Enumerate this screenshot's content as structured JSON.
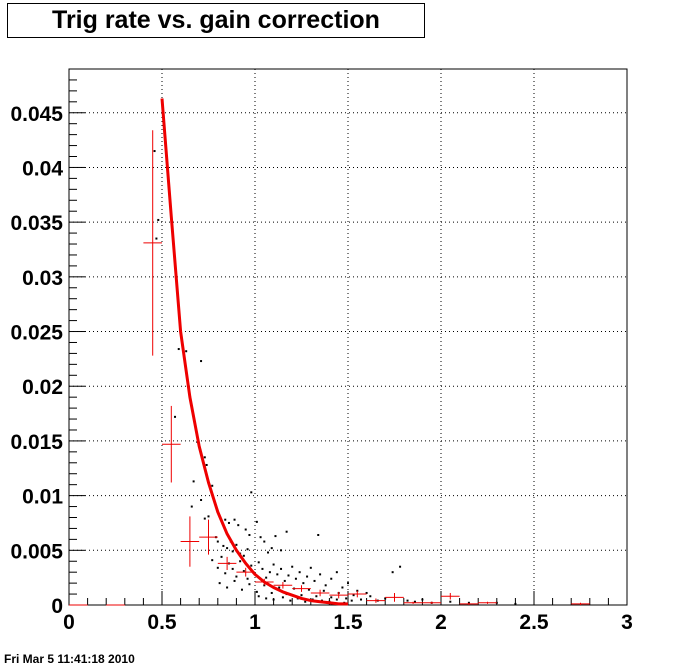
{
  "chart_data": {
    "type": "scatter",
    "title": "Trig rate vs. gain correction",
    "xlabel": "",
    "ylabel": "",
    "xlim": [
      0,
      3
    ],
    "ylim": [
      0,
      0.049
    ],
    "grid": true,
    "legend": "none",
    "x_ticks": [
      "0",
      "0.5",
      "1",
      "1.5",
      "2",
      "2.5",
      "3"
    ],
    "x_tick_values": [
      0,
      0.5,
      1,
      1.5,
      2,
      2.5,
      3
    ],
    "y_ticks": [
      "0",
      "0.005",
      "0.01",
      "0.015",
      "0.02",
      "0.025",
      "0.03",
      "0.035",
      "0.04",
      "0.045"
    ],
    "y_tick_values": [
      0,
      0.005,
      0.01,
      0.015,
      0.02,
      0.025,
      0.03,
      0.035,
      0.04,
      0.045
    ],
    "colors": {
      "profile": "#ee0000",
      "fit": "#ee0000",
      "points": "#000000"
    },
    "scatter_points": [
      [
        0.46,
        0.0415
      ],
      [
        0.48,
        0.0352
      ],
      [
        0.47,
        0.0335
      ],
      [
        0.59,
        0.0234
      ],
      [
        0.63,
        0.0232
      ],
      [
        0.71,
        0.0223
      ],
      [
        0.57,
        0.0172
      ],
      [
        0.69,
        0.0149
      ],
      [
        0.73,
        0.0135
      ],
      [
        0.74,
        0.0128
      ],
      [
        0.67,
        0.0113
      ],
      [
        0.77,
        0.0109
      ],
      [
        0.66,
        0.009
      ],
      [
        0.71,
        0.0096
      ],
      [
        0.73,
        0.0079
      ],
      [
        0.75,
        0.0081
      ],
      [
        0.8,
        0.0085
      ],
      [
        0.84,
        0.0078
      ],
      [
        0.86,
        0.0075
      ],
      [
        0.89,
        0.0078
      ],
      [
        0.91,
        0.0073
      ],
      [
        0.95,
        0.0069
      ],
      [
        0.98,
        0.0103
      ],
      [
        1.01,
        0.0076
      ],
      [
        0.97,
        0.0064
      ],
      [
        0.79,
        0.0062
      ],
      [
        0.8,
        0.0058
      ],
      [
        0.83,
        0.0054
      ],
      [
        0.85,
        0.0052
      ],
      [
        0.87,
        0.0058
      ],
      [
        0.88,
        0.0049
      ],
      [
        0.9,
        0.0055
      ],
      [
        0.92,
        0.0047
      ],
      [
        0.94,
        0.0045
      ],
      [
        0.96,
        0.0051
      ],
      [
        1.03,
        0.0062
      ],
      [
        1.05,
        0.0058
      ],
      [
        1.07,
        0.0048
      ],
      [
        1.09,
        0.0052
      ],
      [
        1.11,
        0.0063
      ],
      [
        1.14,
        0.005
      ],
      [
        1.17,
        0.0067
      ],
      [
        1.34,
        0.0064
      ],
      [
        0.77,
        0.0041
      ],
      [
        0.8,
        0.0034
      ],
      [
        0.82,
        0.0044
      ],
      [
        0.84,
        0.0029
      ],
      [
        0.86,
        0.0038
      ],
      [
        0.88,
        0.0033
      ],
      [
        0.9,
        0.0026
      ],
      [
        0.92,
        0.004
      ],
      [
        0.94,
        0.0031
      ],
      [
        0.96,
        0.0024
      ],
      [
        0.98,
        0.0036
      ],
      [
        1.0,
        0.0029
      ],
      [
        1.02,
        0.0039
      ],
      [
        1.04,
        0.0033
      ],
      [
        1.06,
        0.0025
      ],
      [
        1.08,
        0.003
      ],
      [
        1.1,
        0.0037
      ],
      [
        1.12,
        0.0028
      ],
      [
        1.14,
        0.0033
      ],
      [
        1.16,
        0.0022
      ],
      [
        1.18,
        0.0027
      ],
      [
        1.2,
        0.0035
      ],
      [
        1.22,
        0.0024
      ],
      [
        1.24,
        0.003
      ],
      [
        1.26,
        0.002
      ],
      [
        1.28,
        0.0026
      ],
      [
        1.3,
        0.0034
      ],
      [
        1.32,
        0.0022
      ],
      [
        1.35,
        0.0028
      ],
      [
        1.38,
        0.0018
      ],
      [
        1.41,
        0.0024
      ],
      [
        1.44,
        0.003
      ],
      [
        1.47,
        0.0016
      ],
      [
        1.5,
        0.002
      ],
      [
        1.55,
        0.0013
      ],
      [
        1.6,
        0.0011
      ],
      [
        0.81,
        0.002
      ],
      [
        0.85,
        0.0016
      ],
      [
        0.89,
        0.0022
      ],
      [
        0.93,
        0.0014
      ],
      [
        0.97,
        0.0019
      ],
      [
        1.01,
        0.0012
      ],
      [
        1.05,
        0.0018
      ],
      [
        1.09,
        0.0011
      ],
      [
        1.13,
        0.0016
      ],
      [
        1.17,
        0.001
      ],
      [
        1.21,
        0.0015
      ],
      [
        1.25,
        0.0009
      ],
      [
        1.29,
        0.0014
      ],
      [
        1.33,
        0.0008
      ],
      [
        1.37,
        0.0013
      ],
      [
        1.41,
        0.0007
      ],
      [
        1.45,
        0.0011
      ],
      [
        1.49,
        0.0006
      ],
      [
        1.53,
        0.0009
      ],
      [
        1.57,
        0.0005
      ],
      [
        1.62,
        0.0008
      ],
      [
        1.66,
        0.0004
      ],
      [
        1.7,
        0.0006
      ],
      [
        1.74,
        0.003
      ],
      [
        1.78,
        0.0035
      ],
      [
        1.82,
        0.0004
      ],
      [
        1.86,
        0.0003
      ],
      [
        1.9,
        0.0005
      ],
      [
        1.95,
        0.0002
      ],
      [
        2.05,
        0.0003
      ],
      [
        2.15,
        0.0002
      ],
      [
        2.3,
        0.0002
      ],
      [
        2.4,
        0.0001
      ],
      [
        1.02,
        0.0008
      ],
      [
        1.06,
        0.0006
      ],
      [
        1.1,
        0.0005
      ],
      [
        1.15,
        0.0007
      ],
      [
        1.19,
        0.0004
      ],
      [
        1.23,
        0.0006
      ],
      [
        1.27,
        0.0003
      ],
      [
        1.31,
        0.0005
      ],
      [
        1.36,
        0.0004
      ],
      [
        1.4,
        0.0003
      ],
      [
        1.44,
        0.0005
      ],
      [
        1.48,
        0.0002
      ],
      [
        1.52,
        0.0004
      ]
    ],
    "profile_points": [
      {
        "x": 0.45,
        "y": 0.0331,
        "xerr": 0.05,
        "yerr": 0.0103
      },
      {
        "x": 0.55,
        "y": 0.0147,
        "xerr": 0.05,
        "yerr": 0.0035
      },
      {
        "x": 0.65,
        "y": 0.0058,
        "xerr": 0.05,
        "yerr": 0.0023
      },
      {
        "x": 0.75,
        "y": 0.0062,
        "xerr": 0.05,
        "yerr": 0.0016
      },
      {
        "x": 0.85,
        "y": 0.0038,
        "xerr": 0.05,
        "yerr": 0.0006
      },
      {
        "x": 0.95,
        "y": 0.003,
        "xerr": 0.05,
        "yerr": 0.0004
      },
      {
        "x": 1.05,
        "y": 0.0021,
        "xerr": 0.05,
        "yerr": 0.0003
      },
      {
        "x": 1.15,
        "y": 0.0018,
        "xerr": 0.05,
        "yerr": 0.0003
      },
      {
        "x": 1.25,
        "y": 0.0015,
        "xerr": 0.05,
        "yerr": 0.0003
      },
      {
        "x": 1.35,
        "y": 0.0011,
        "xerr": 0.05,
        "yerr": 0.0003
      },
      {
        "x": 1.45,
        "y": 0.0009,
        "xerr": 0.05,
        "yerr": 0.0003
      },
      {
        "x": 1.55,
        "y": 0.001,
        "xerr": 0.05,
        "yerr": 0.0003
      },
      {
        "x": 1.65,
        "y": 0.0004,
        "xerr": 0.05,
        "yerr": 0.0002
      },
      {
        "x": 1.75,
        "y": 0.0007,
        "xerr": 0.05,
        "yerr": 0.0004
      },
      {
        "x": 1.85,
        "y": 0.0002,
        "xerr": 0.05,
        "yerr": 0.0001
      },
      {
        "x": 1.95,
        "y": 0.0002,
        "xerr": 0.05,
        "yerr": 0.0001
      },
      {
        "x": 2.05,
        "y": 0.0008,
        "xerr": 0.05,
        "yerr": 0.0003
      },
      {
        "x": 2.15,
        "y": 0.0001,
        "xerr": 0.05,
        "yerr": 0.0001
      },
      {
        "x": 2.25,
        "y": 0.0002,
        "xerr": 0.05,
        "yerr": 0.0001
      },
      {
        "x": 2.75,
        "y": 0.0001,
        "xerr": 0.05,
        "yerr": 0.0001
      },
      {
        "x": 0.05,
        "y": 0.0,
        "xerr": 0.05,
        "yerr": 0.0
      },
      {
        "x": 0.25,
        "y": 0.0,
        "xerr": 0.05,
        "yerr": 0.0
      }
    ],
    "fit_curve": [
      [
        0.5,
        0.0463
      ],
      [
        0.55,
        0.0355
      ],
      [
        0.6,
        0.025
      ],
      [
        0.65,
        0.019
      ],
      [
        0.7,
        0.0145
      ],
      [
        0.75,
        0.0112
      ],
      [
        0.8,
        0.0085
      ],
      [
        0.85,
        0.0065
      ],
      [
        0.9,
        0.005
      ],
      [
        0.95,
        0.0038
      ],
      [
        1.0,
        0.0028
      ],
      [
        1.05,
        0.0021
      ],
      [
        1.1,
        0.0016
      ],
      [
        1.15,
        0.0012
      ],
      [
        1.2,
        0.0009
      ],
      [
        1.25,
        0.0006
      ],
      [
        1.3,
        0.0004
      ],
      [
        1.35,
        0.0003
      ],
      [
        1.4,
        0.0002
      ],
      [
        1.45,
        0.0001
      ],
      [
        1.5,
        0.0001
      ]
    ]
  },
  "footer": {
    "timestamp": "Fri Mar  5 11:41:18 2010"
  }
}
